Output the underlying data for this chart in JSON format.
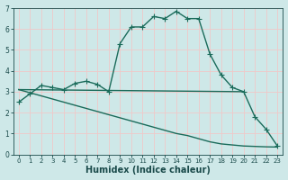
{
  "xlabel": "Humidex (Indice chaleur)",
  "ylabel": "",
  "bg_color": "#cee8e8",
  "grid_color": "#f0c8c8",
  "line_color": "#1a6b5a",
  "xlim": [
    -0.5,
    23.5
  ],
  "ylim": [
    0,
    7
  ],
  "xticks": [
    0,
    1,
    2,
    3,
    4,
    5,
    6,
    7,
    8,
    9,
    10,
    11,
    12,
    13,
    14,
    15,
    16,
    17,
    18,
    19,
    20,
    21,
    22,
    23
  ],
  "yticks": [
    0,
    1,
    2,
    3,
    4,
    5,
    6,
    7
  ],
  "line1_x": [
    0,
    1,
    2,
    3,
    4,
    5,
    6,
    7,
    8,
    9,
    10,
    11,
    12,
    13,
    14,
    15,
    16,
    17,
    18,
    19,
    20,
    21,
    22,
    23
  ],
  "line1_y": [
    2.5,
    2.9,
    3.3,
    3.2,
    3.1,
    3.4,
    3.5,
    3.35,
    3.0,
    5.3,
    6.1,
    6.1,
    6.6,
    6.5,
    6.85,
    6.5,
    6.5,
    4.8,
    3.8,
    3.2,
    3.0,
    1.8,
    1.2,
    0.4
  ],
  "line2_x": [
    0,
    20
  ],
  "line2_y": [
    3.1,
    3.0
  ],
  "line3_x": [
    0,
    1,
    2,
    3,
    4,
    5,
    6,
    7,
    8,
    9,
    10,
    11,
    12,
    13,
    14,
    15,
    16,
    17,
    18,
    19,
    20,
    21,
    22,
    23
  ],
  "line3_y": [
    3.1,
    2.95,
    2.8,
    2.65,
    2.5,
    2.35,
    2.2,
    2.05,
    1.9,
    1.75,
    1.6,
    1.45,
    1.3,
    1.15,
    1.0,
    0.9,
    0.75,
    0.6,
    0.5,
    0.45,
    0.4,
    0.38,
    0.36,
    0.35
  ],
  "markersize": 3,
  "linewidth": 1.0,
  "tick_fontsize": 5.5,
  "label_fontsize": 7
}
